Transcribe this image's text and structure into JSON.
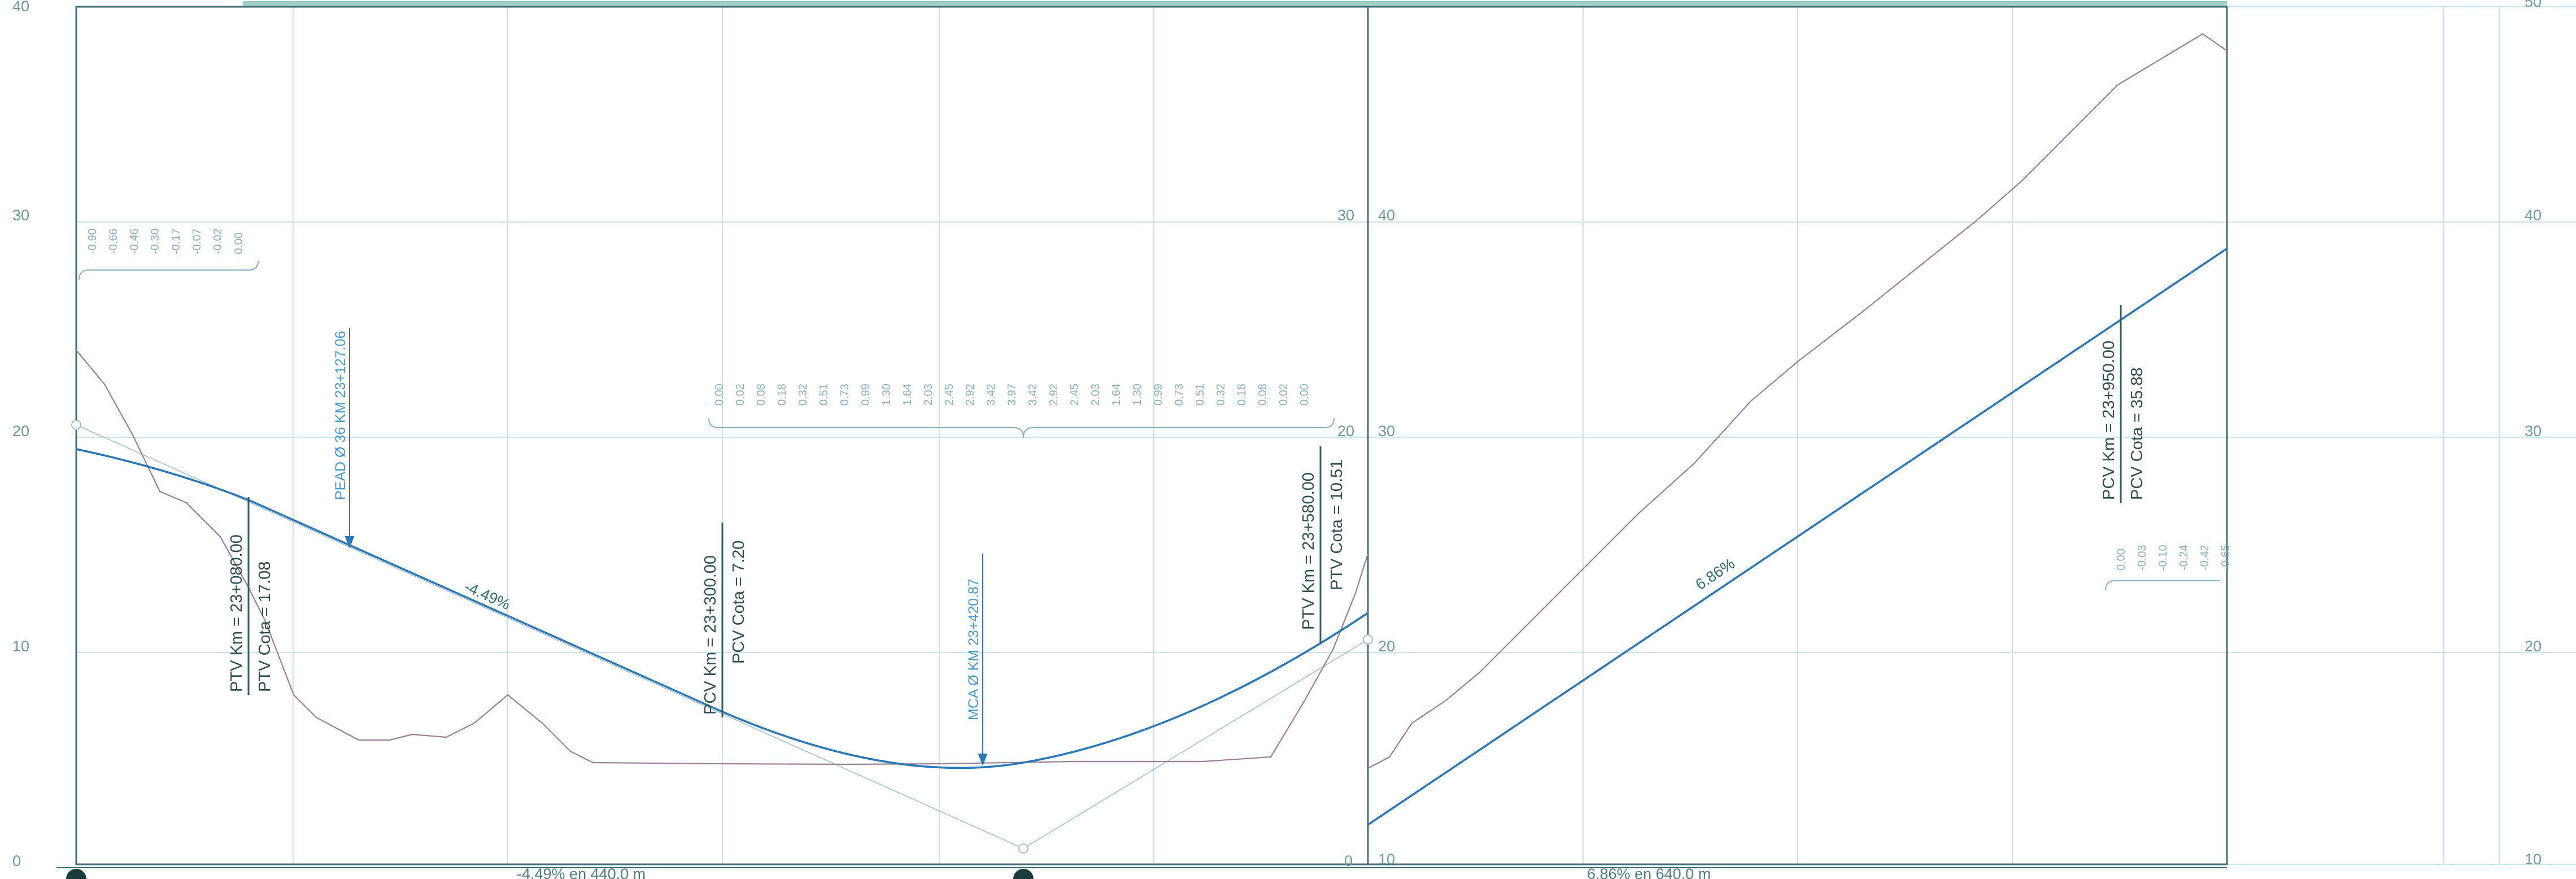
{
  "left_axis_ticks": [
    "40",
    "30",
    "20",
    "10",
    "0"
  ],
  "mid_axis_ticks_a": [
    "30",
    "20",
    "0"
  ],
  "mid_axis_ticks_b": [
    "40",
    "30",
    "20",
    "10"
  ],
  "right_axis_ticks": [
    "50",
    "40",
    "30",
    "20",
    "10"
  ],
  "curve_labels": [
    {
      "km": "PTV Km  =  23+080.00",
      "cota": "PTV Cota  =  17.08"
    },
    {
      "km": "PCV Km  =  23+300.00",
      "cota": "PCV Cota  =  7.20"
    },
    {
      "km": "PTV Km  =  23+580.00",
      "cota": "PTV Cota  =  10.51"
    },
    {
      "km": "PCV Km  =  23+950.00",
      "cota": "PCV Cota  =  35.88"
    }
  ],
  "crossings": [
    {
      "label": "PEAD Ø 36  KM  23+127.06"
    },
    {
      "label": "MCA Ø  KM  23+420.87"
    }
  ],
  "slope_labels": [
    "-4.49%",
    "6.86%"
  ],
  "bottom_labels": [
    "-4.49% en 440.0 m",
    "6.86% en 640.0 m"
  ],
  "ordinates_left": [
    "-0.90",
    "-0.66",
    "-0.46",
    "-0.30",
    "-0.17",
    "-0.07",
    "-0.02",
    "0.00"
  ],
  "ordinates_mid": [
    "0.00",
    "0.02",
    "0.08",
    "0.18",
    "0.32",
    "0.51",
    "0.73",
    "0.99",
    "1.30",
    "1.64",
    "2.03",
    "2.45",
    "2.92",
    "3.42",
    "3.97",
    "3.42",
    "2.92",
    "2.45",
    "2.03",
    "1.64",
    "1.30",
    "0.99",
    "0.73",
    "0.51",
    "0.32",
    "0.18",
    "0.08",
    "0.02",
    "0.00"
  ],
  "ordinates_right": [
    "0.00",
    "-0.03",
    "-0.10",
    "-0.24",
    "-0.42",
    "-0.65"
  ],
  "colors": {
    "grade": "#2a78b8",
    "terrain": "#9b7f95",
    "grid": "#cfe3e6",
    "frame": "#3f6f74"
  }
}
